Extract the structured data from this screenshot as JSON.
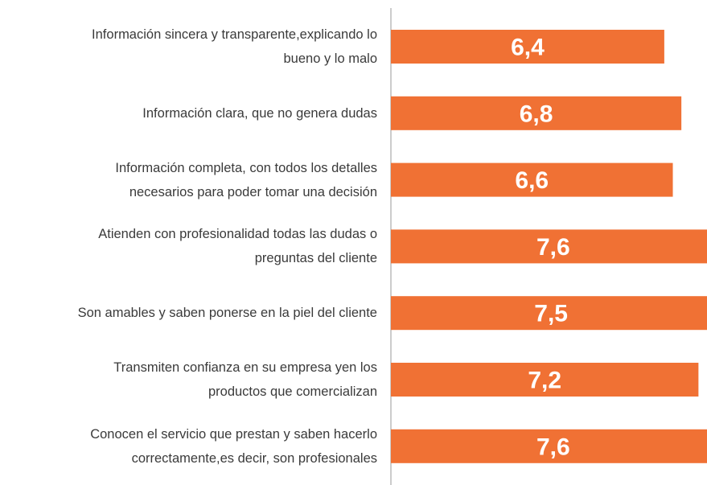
{
  "chart_data": {
    "type": "bar",
    "orientation": "horizontal",
    "categories": [
      "Información sincera y transparente,explicando lo\nbueno y lo malo",
      "Información clara, que no genera dudas",
      "Información completa, con todos los detalles\nnecesarios para poder tomar una decisión",
      "Atienden con profesionalidad todas las dudas o\npreguntas del cliente",
      "Son amables y saben ponerse en la piel del cliente",
      "Transmiten confianza en su empresa yen los\nproductos que comercializan",
      "Conocen el servicio que prestan y saben hacerlo\ncorrectamente,es decir, son profesionales"
    ],
    "values": [
      6.4,
      6.8,
      6.6,
      7.6,
      7.5,
      7.2,
      7.6
    ],
    "value_labels": [
      "6,4",
      "6,8",
      "6,6",
      "7,6",
      "7,5",
      "7,2",
      "7,6"
    ],
    "color": "#f07134",
    "xlim": [
      0,
      7.4
    ]
  }
}
